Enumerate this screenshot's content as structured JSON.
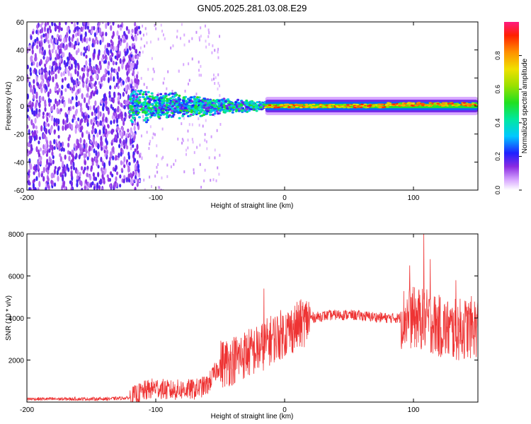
{
  "title": "GN05.2025.281.03.08.E29",
  "colors": {
    "snr_line": "#ee3333",
    "background": "#ffffff",
    "axis": "#000000"
  },
  "chart_data": [
    {
      "type": "heatmap",
      "name": "spectrogram",
      "xlabel": "Height of straight line (km)",
      "ylabel": "Frequency (Hz)",
      "xlim": [
        -200,
        150
      ],
      "ylim": [
        -60,
        60
      ],
      "xticks": [
        -200,
        -100,
        0,
        100
      ],
      "xtick_labels": [
        "-200",
        "-100",
        "0",
        "100"
      ],
      "yticks": [
        -60,
        -40,
        -20,
        0,
        20,
        40,
        60
      ],
      "ytick_labels": [
        "-60",
        "-40",
        "-20",
        "0",
        "20",
        "40",
        "60"
      ],
      "colorbar": {
        "label": "Normalized spectral amplitude",
        "range": [
          0,
          1
        ],
        "ticks": [
          0,
          0.2,
          0.4,
          0.6,
          0.8
        ],
        "tick_labels": [
          "0.0",
          "0.2",
          "0.4",
          "0.6",
          "0.8"
        ]
      },
      "regions": [
        {
          "from_km": -200,
          "to_km": -120,
          "description": "broadband noise across all frequencies"
        },
        {
          "from_km": -120,
          "to_km": -15,
          "description": "noisy band near 0 Hz"
        },
        {
          "from_km": -15,
          "to_km": 150,
          "description": "narrow strong band near 0 Hz"
        }
      ]
    },
    {
      "type": "line",
      "name": "snr",
      "xlabel": "Height of straight line (km)",
      "ylabel": "SNR (10 * v/v)",
      "xlim": [
        -200,
        150
      ],
      "ylim": [
        0,
        8000
      ],
      "xticks": [
        -200,
        -100,
        0,
        100
      ],
      "xtick_labels": [
        "-200",
        "-100",
        "0",
        "100"
      ],
      "yticks": [
        2000,
        4000,
        6000,
        8000
      ],
      "ytick_labels": [
        "2000",
        "4000",
        "6000",
        "8000"
      ],
      "x": [
        -200,
        -180,
        -160,
        -140,
        -120,
        -110,
        -100,
        -90,
        -80,
        -70,
        -60,
        -50,
        -40,
        -30,
        -20,
        -10,
        0,
        10,
        20,
        30,
        40,
        50,
        60,
        70,
        80,
        90,
        100,
        110,
        120,
        130,
        140,
        150
      ],
      "y": [
        150,
        150,
        150,
        150,
        200,
        500,
        700,
        550,
        600,
        600,
        800,
        1800,
        2000,
        2300,
        2500,
        3000,
        3300,
        3600,
        4000,
        4100,
        4150,
        4150,
        4100,
        4050,
        4000,
        4000,
        4000,
        3900,
        3600,
        3400,
        3500,
        3600
      ],
      "spikes": [
        {
          "x": -16,
          "y": 5400
        },
        {
          "x": 97,
          "y": 6500
        },
        {
          "x": 108,
          "y": 8000
        },
        {
          "x": 113,
          "y": 6800
        },
        {
          "x": 133,
          "y": 5800
        }
      ]
    }
  ]
}
